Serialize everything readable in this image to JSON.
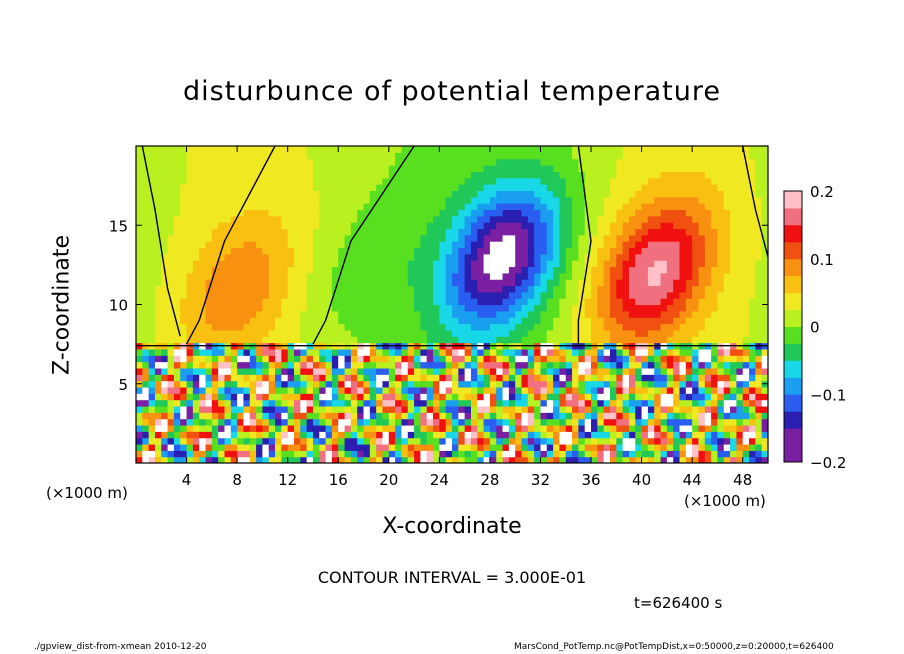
{
  "chart_data": {
    "type": "heatmap",
    "title": "disturbunce of potential temperature",
    "xlabel": "X-coordinate",
    "ylabel": "Z-coordinate",
    "xunit": "(×1000 m)",
    "xlim": [
      0,
      50
    ],
    "ylim": [
      0,
      20
    ],
    "xticks": [
      4,
      8,
      12,
      16,
      20,
      24,
      28,
      32,
      36,
      40,
      44,
      48
    ],
    "yticks": [
      5,
      10,
      15
    ],
    "colorbar": {
      "range": [
        -0.2,
        0.2
      ],
      "ticks": [
        0.2,
        0.1,
        0,
        -0.1,
        -0.2
      ],
      "tick_labels": [
        "0.2",
        "0.1",
        "0",
        "−0.1",
        "−0.2"
      ]
    },
    "features": [
      {
        "name": "cold",
        "x": 29,
        "z": 13,
        "value": -0.2
      },
      {
        "name": "warm",
        "x": 41,
        "z": 12,
        "value": 0.16
      },
      {
        "name": "warm",
        "x": 8,
        "z": 11,
        "value": 0.07
      },
      {
        "name": "cool",
        "x": 18,
        "z": 12,
        "value": -0.03
      }
    ],
    "contour_interval": "CONTOUR INTERVAL = 3.000E-01",
    "time": "t=626400 s"
  },
  "footer": {
    "left": "./gpview_dist-from-xmean 2010-12-20",
    "right": "MarsCond_PotTemp.nc@PotTempDist,x=0:50000,z=0:20000,t=626400"
  },
  "colors": {
    "axis": "#000000",
    "background": "#ffffff",
    "palette": [
      "#7a1fa2",
      "#2a1fb0",
      "#2a5ef0",
      "#1a9ef0",
      "#18d8e8",
      "#20c85a",
      "#58e020",
      "#b8f020",
      "#f0e820",
      "#f8c010",
      "#f89010",
      "#f05010",
      "#f01010",
      "#f07080",
      "#ffc0c8"
    ]
  }
}
